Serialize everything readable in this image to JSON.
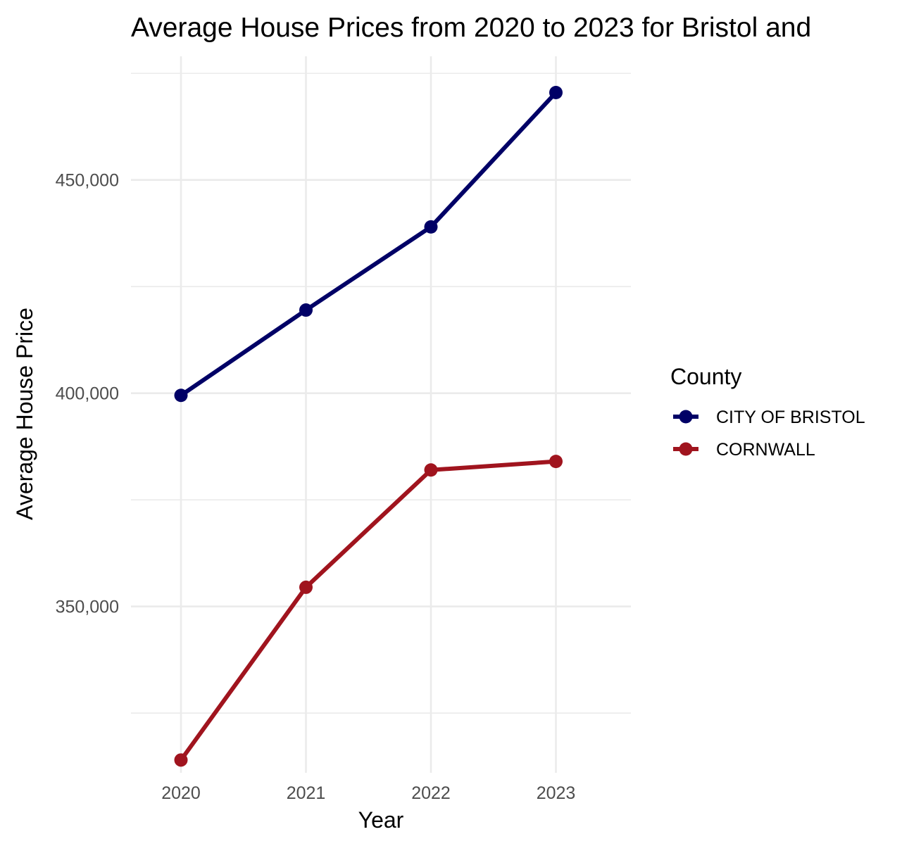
{
  "chart_data": {
    "type": "line",
    "title": "Average House Prices from 2020 to 2023 for Bristol and",
    "xlabel": "Year",
    "ylabel": "Average House Price",
    "x": [
      2020,
      2021,
      2022,
      2023
    ],
    "x_tick_labels": [
      "2020",
      "2021",
      "2022",
      "2023"
    ],
    "y_ticks": [
      350000,
      400000,
      450000
    ],
    "y_tick_labels": [
      "350,000",
      "400,000",
      "450,000"
    ],
    "ylim": [
      311000,
      479000
    ],
    "grid": true,
    "legend": {
      "title": "County",
      "placement": "right"
    },
    "series": [
      {
        "name": "CITY OF BRISTOL",
        "color": "#000066",
        "values": [
          399500,
          419500,
          439000,
          470500
        ]
      },
      {
        "name": "CORNWALL",
        "color": "#A0141E",
        "values": [
          314000,
          354500,
          382000,
          384000
        ]
      }
    ]
  }
}
